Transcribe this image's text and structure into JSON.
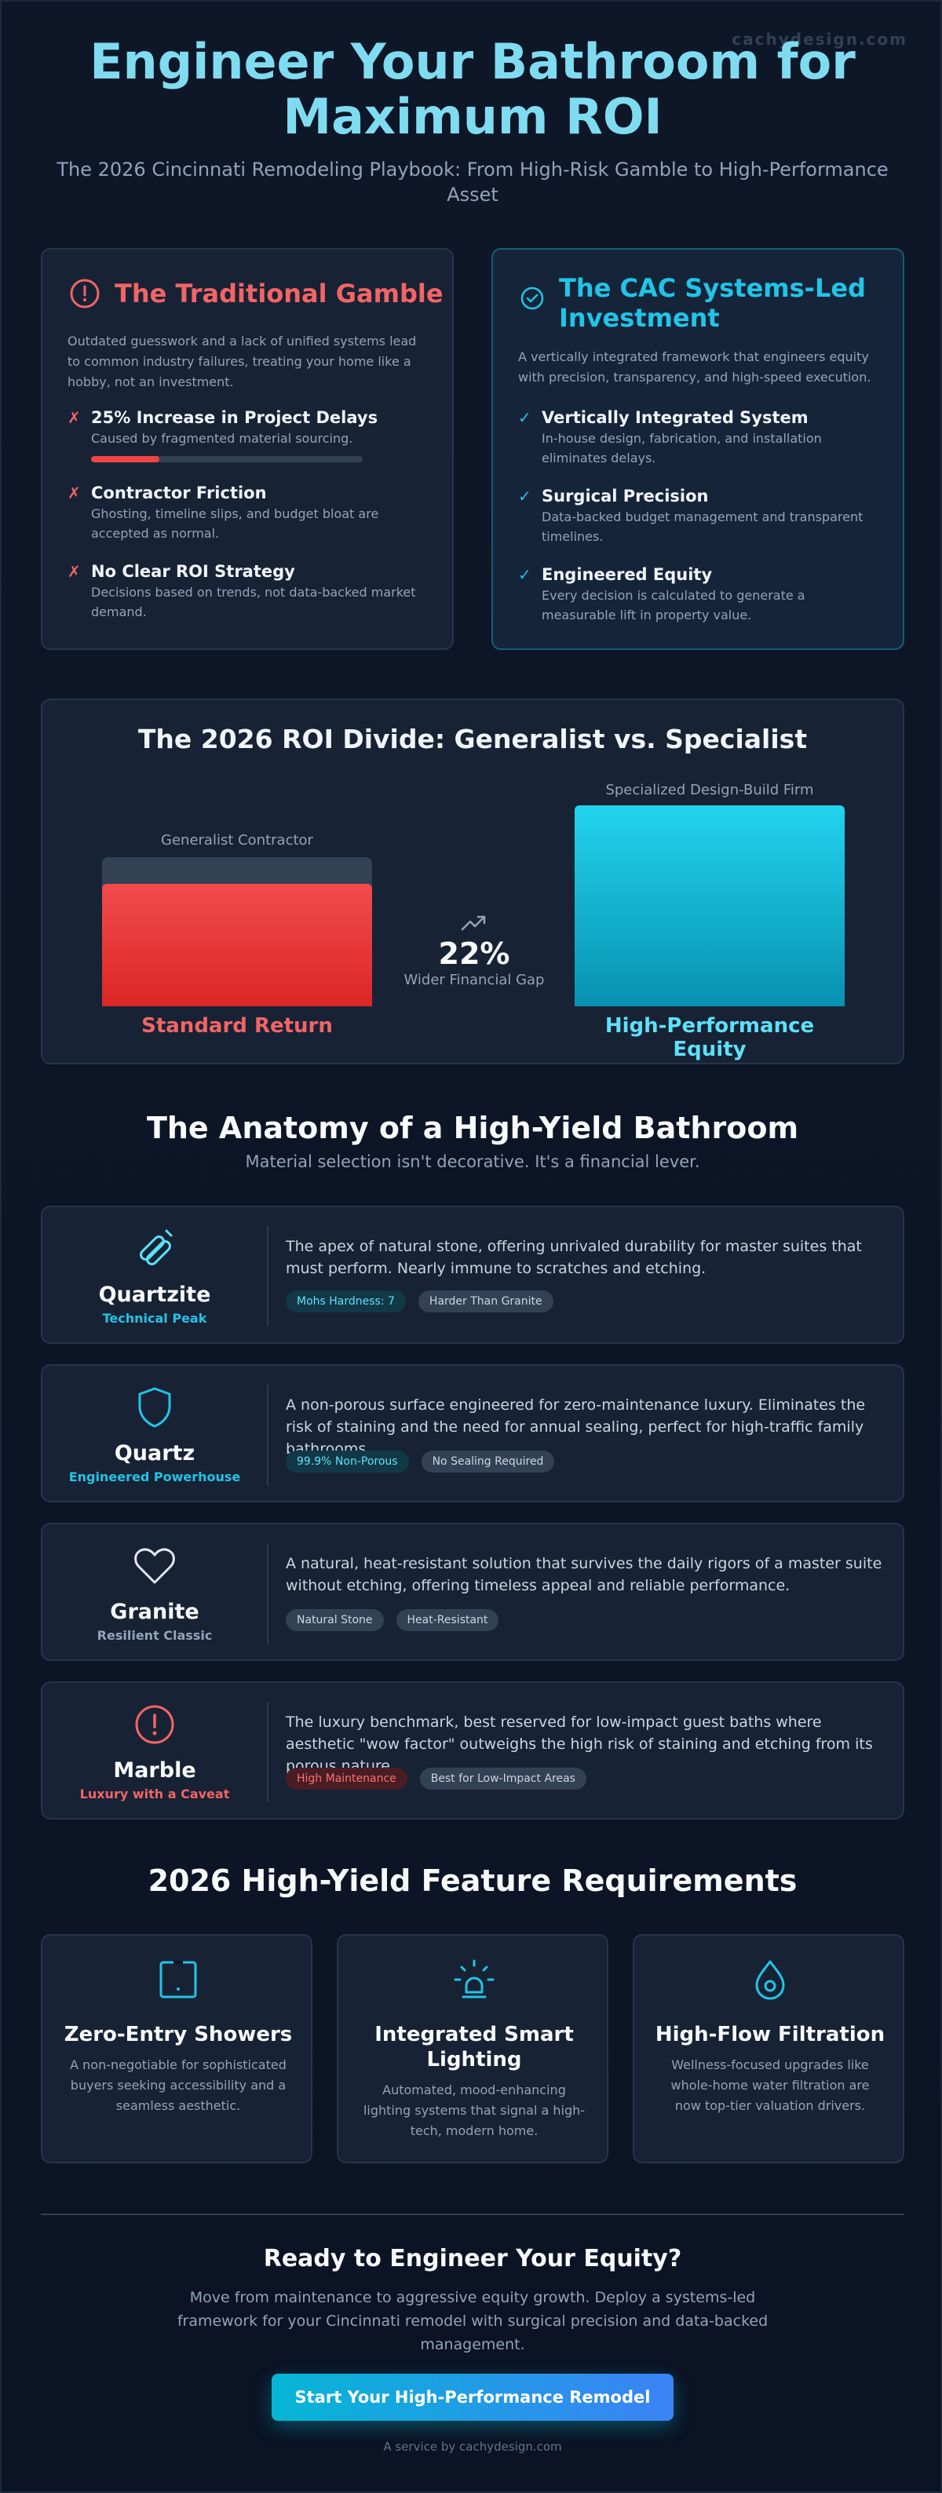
{
  "watermark": "cachydesign.com",
  "hero": {
    "title": "Engineer Your Bathroom for Maximum ROI",
    "subtitle": "The 2026 Cincinnati Remodeling Playbook: From High-Risk Gamble to High-Performance Asset"
  },
  "comparison": {
    "left": {
      "title": "The Traditional Gamble",
      "intro": "Outdated guesswork and a lack of unified systems lead to common industry failures, treating your home like a hobby, not an investment.",
      "items": [
        {
          "title": "25% Increase in Project Delays",
          "text": "Caused by fragmented material sourcing.",
          "progress": 0.25
        },
        {
          "title": "Contractor Friction",
          "text": "Ghosting, timeline slips, and budget bloat are accepted as normal."
        },
        {
          "title": "No Clear ROI Strategy",
          "text": "Decisions based on trends, not data-backed market demand."
        }
      ],
      "mark": "✗",
      "accent": "#f16565"
    },
    "right": {
      "title": "The CAC Systems-Led Investment",
      "intro": "A vertically integrated framework that engineers equity with precision, transparency, and high-speed execution.",
      "items": [
        {
          "title": "Vertically Integrated System",
          "text": "In-house design, fabrication, and installation eliminates delays."
        },
        {
          "title": "Surgical Precision",
          "text": "Data-backed budget management and transparent timelines."
        },
        {
          "title": "Engineered Equity",
          "text": "Every decision is calculated to generate a measurable lift in property value."
        }
      ],
      "mark": "✓",
      "accent": "#22c4e6"
    }
  },
  "roi": {
    "title": "The 2026 ROI Divide: Generalist vs. Specialist",
    "gap_value": "22%",
    "gap_label": "Wider Financial Gap",
    "chart_data": {
      "type": "bar",
      "categories": [
        "Generalist Contractor",
        "Specialized Design-Build Firm"
      ],
      "captions": [
        "Standard Return",
        "High-Performance Equity"
      ],
      "relative_height": [
        0.61,
        1.0
      ],
      "colors": [
        "#ef4444",
        "#22d3ee"
      ]
    }
  },
  "anatomy": {
    "title": "The Anatomy of a High-Yield Bathroom",
    "subtitle": "Material selection isn't decorative. It's a financial lever.",
    "materials": [
      {
        "name": "Quartzite",
        "tag": "Technical Peak",
        "tag_color": "#22c4e6",
        "icon": "gem-tools-icon",
        "desc": "The apex of natural stone, offering unrivaled durability for master suites that must perform. Nearly immune to scratches and etching.",
        "chips": [
          {
            "label": "Mohs Hardness: 7",
            "style": "cyan"
          },
          {
            "label": "Harder Than Granite",
            "style": "gray"
          }
        ]
      },
      {
        "name": "Quartz",
        "tag": "Engineered Powerhouse",
        "tag_color": "#22c4e6",
        "icon": "shield-icon",
        "desc": "A non-porous surface engineered for zero-maintenance luxury. Eliminates the risk of staining and the need for annual sealing, perfect for high-traffic family bathrooms.",
        "chips": [
          {
            "label": "99.9% Non-Porous",
            "style": "cyan"
          },
          {
            "label": "No Sealing Required",
            "style": "gray"
          }
        ]
      },
      {
        "name": "Granite",
        "tag": "Resilient Classic",
        "tag_color": "#94a3b8",
        "icon": "heart-icon",
        "desc": "A natural, heat-resistant solution that survives the daily rigors of a master suite without etching, offering timeless appeal and reliable performance.",
        "chips": [
          {
            "label": "Natural Stone",
            "style": "gray"
          },
          {
            "label": "Heat-Resistant",
            "style": "gray"
          }
        ]
      },
      {
        "name": "Marble",
        "tag": "Luxury with a Caveat",
        "tag_color": "#f16565",
        "icon": "alert-circle-icon",
        "desc": "The luxury benchmark, best reserved for low-impact guest baths where aesthetic \"wow factor\" outweighs the high risk of staining and etching from its porous nature.",
        "chips": [
          {
            "label": "High Maintenance",
            "style": "red"
          },
          {
            "label": "Best for Low-Impact Areas",
            "style": "gray"
          }
        ]
      }
    ]
  },
  "features": {
    "title": "2026 High-Yield Feature Requirements",
    "items": [
      {
        "title": "Zero-Entry Showers",
        "text": "A non-negotiable for sophisticated buyers seeking accessibility and a seamless aesthetic.",
        "icon": "tablet-icon"
      },
      {
        "title": "Integrated Smart Lighting",
        "text": "Automated, mood-enhancing lighting systems that signal a high-tech, modern home.",
        "icon": "lamp-icon"
      },
      {
        "title": "High-Flow Filtration",
        "text": "Wellness-focused upgrades like whole-home water filtration are now top-tier valuation drivers.",
        "icon": "water-drop-icon"
      }
    ]
  },
  "cta": {
    "title": "Ready to Engineer Your Equity?",
    "text": "Move from maintenance to aggressive equity growth. Deploy a systems-led framework for your Cincinnati remodel with surgical precision and data-backed management.",
    "button": "Start Your High-Performance Remodel"
  },
  "footer": "A service by cachydesign.com"
}
